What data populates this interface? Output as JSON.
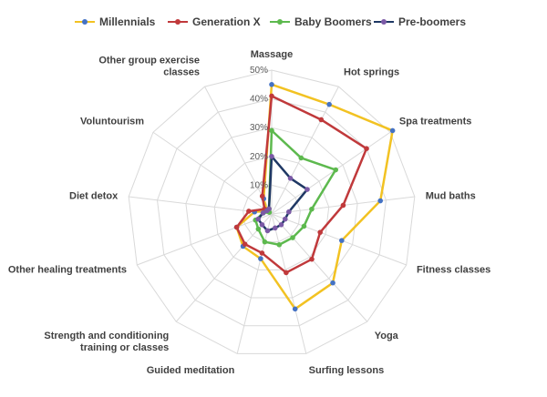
{
  "chart_data": {
    "type": "radar",
    "title": "",
    "categories": [
      "Massage",
      "Hot springs",
      "Spa treatments",
      "Mud baths",
      "Fitness classes",
      "Yoga",
      "Surfing lessons",
      "Guided meditation",
      [
        "Strength and conditioning",
        "training or classes"
      ],
      "Other healing treatments",
      "Diet detox",
      "Voluntourism",
      [
        "Other group exercise",
        "classes"
      ]
    ],
    "radial_ticks": [
      "10%",
      "20%",
      "30%",
      "40%",
      "50%"
    ],
    "rmax": 50,
    "grid": true,
    "legend_position": "top",
    "series": [
      {
        "name": "Millennials",
        "color": "#F2C222",
        "marker": "#4472C4",
        "values": [
          45,
          43,
          51,
          38,
          26,
          32,
          34,
          16,
          15,
          13,
          6,
          2,
          6
        ]
      },
      {
        "name": "Generation X",
        "color": "#C0393B",
        "marker": "#C0393B",
        "values": [
          41,
          37,
          40,
          25,
          18,
          21,
          21,
          14,
          14,
          13,
          8,
          3,
          7
        ]
      },
      {
        "name": "Baby Boomers",
        "color": "#5DB94E",
        "marker": "#5DB94E",
        "values": [
          29,
          22,
          27,
          14,
          12,
          11,
          11,
          10,
          7,
          6,
          3,
          1,
          2
        ]
      },
      {
        "name": "Pre-boomers",
        "color": "#1F3864",
        "marker": "#7B5AA6",
        "values": [
          20,
          14,
          15,
          6,
          5,
          5,
          5,
          6,
          5,
          5,
          3,
          2,
          2
        ]
      }
    ]
  }
}
